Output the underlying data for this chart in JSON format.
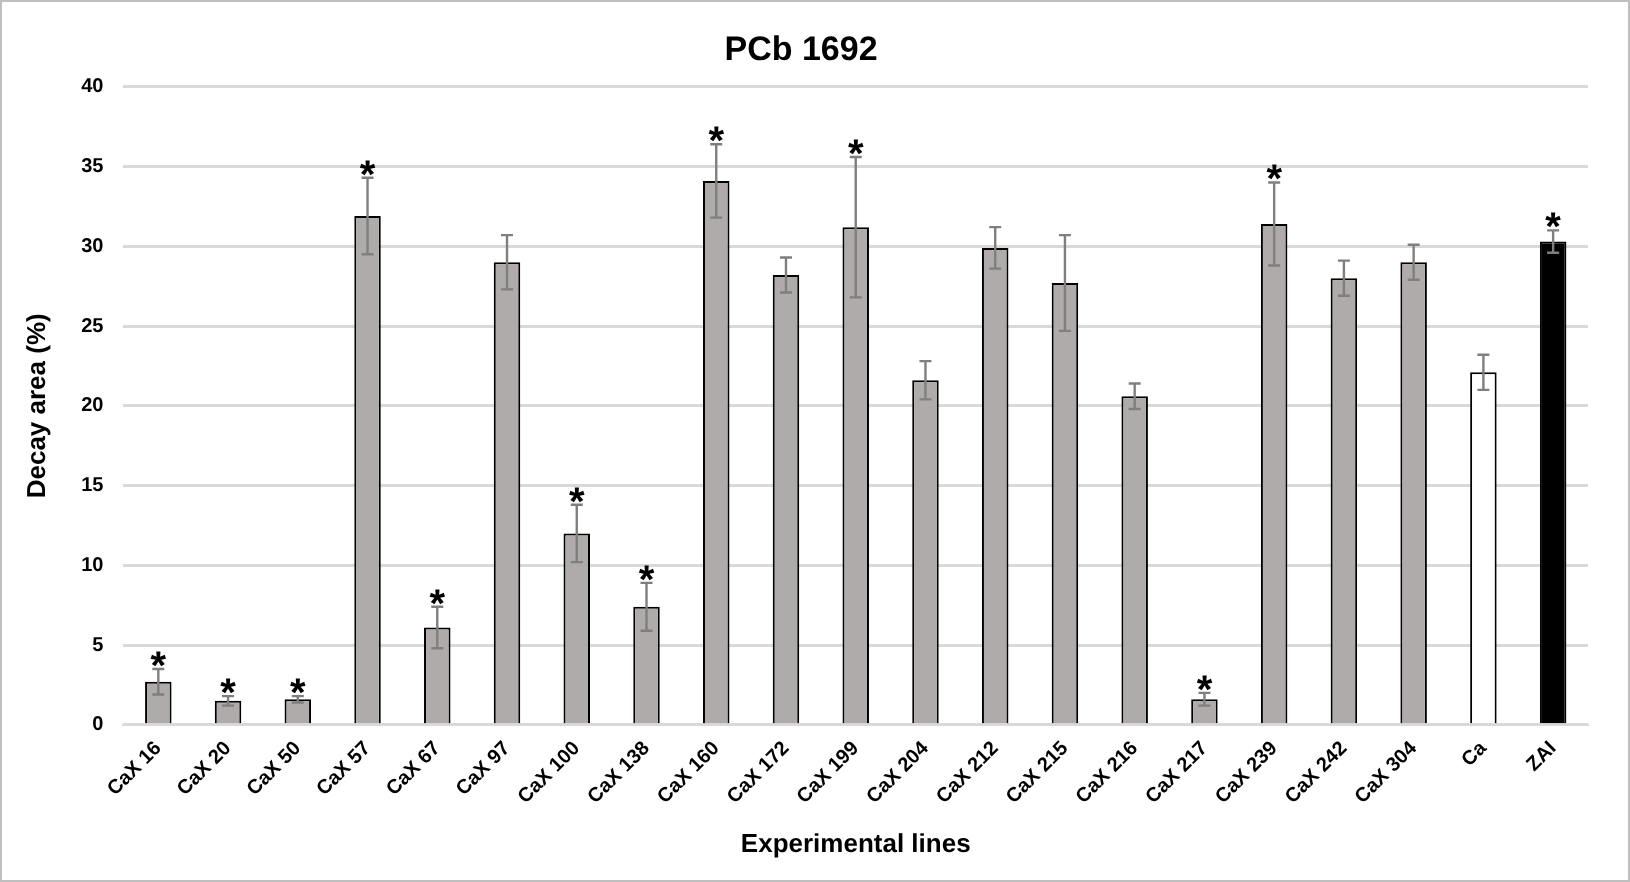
{
  "chart_data": {
    "type": "bar",
    "title": "PCb 1692",
    "xlabel": "Experimental lines",
    "ylabel": "Decay area (%)",
    "categories": [
      "CaX 16",
      "CaX 20",
      "CaX 50",
      "CaX 57",
      "CaX 67",
      "CaX 97",
      "CaX 100",
      "CaX 138",
      "CaX 160",
      "CaX 172",
      "CaX 199",
      "CaX 204",
      "CaX 212",
      "CaX 215",
      "CaX 216",
      "CaX 217",
      "CaX 239",
      "CaX 242",
      "CaX 304",
      "Ca",
      "ZAI"
    ],
    "values": [
      2.7,
      1.5,
      1.6,
      31.9,
      6.1,
      29.0,
      12.0,
      7.4,
      34.1,
      28.2,
      31.2,
      21.6,
      29.9,
      27.7,
      20.6,
      1.6,
      31.4,
      28.0,
      29.0,
      22.1,
      30.3
    ],
    "errors": [
      0.8,
      0.3,
      0.2,
      2.4,
      1.3,
      1.7,
      1.8,
      1.5,
      2.3,
      1.1,
      4.4,
      1.2,
      1.3,
      3.0,
      0.8,
      0.4,
      2.6,
      1.1,
      1.1,
      1.1,
      0.7
    ],
    "colors": [
      "#afabab",
      "#afabab",
      "#afabab",
      "#afabab",
      "#afabab",
      "#afabab",
      "#afabab",
      "#afabab",
      "#afabab",
      "#afabab",
      "#afabab",
      "#afabab",
      "#afabab",
      "#afabab",
      "#afabab",
      "#afabab",
      "#afabab",
      "#afabab",
      "#afabab",
      "#ffffff",
      "#000000"
    ],
    "ylim": [
      0,
      40
    ],
    "yticks": [
      0,
      5,
      10,
      15,
      20,
      25,
      30,
      35,
      40
    ],
    "grid": "y",
    "legend": false,
    "annotations": [
      {
        "text": "*",
        "x": "CaX 16",
        "y": 3.5
      },
      {
        "text": "*",
        "x": "CaX 20",
        "y": 1.8
      },
      {
        "text": "*",
        "x": "CaX 50",
        "y": 1.8
      },
      {
        "text": "*",
        "x": "CaX 57",
        "y": 34.3
      },
      {
        "text": "*",
        "x": "CaX 67",
        "y": 7.4
      },
      {
        "text": "*",
        "x": "CaX 100",
        "y": 13.8
      },
      {
        "text": "*",
        "x": "CaX 138",
        "y": 8.9
      },
      {
        "text": "*",
        "x": "CaX 160",
        "y": 36.4
      },
      {
        "text": "*",
        "x": "CaX 199",
        "y": 35.6
      },
      {
        "text": "*",
        "x": "CaX 217",
        "y": 2.0
      },
      {
        "text": "*",
        "x": "CaX 239",
        "y": 34.0
      },
      {
        "text": "*",
        "x": "ZAI",
        "y": 31.0
      }
    ]
  }
}
